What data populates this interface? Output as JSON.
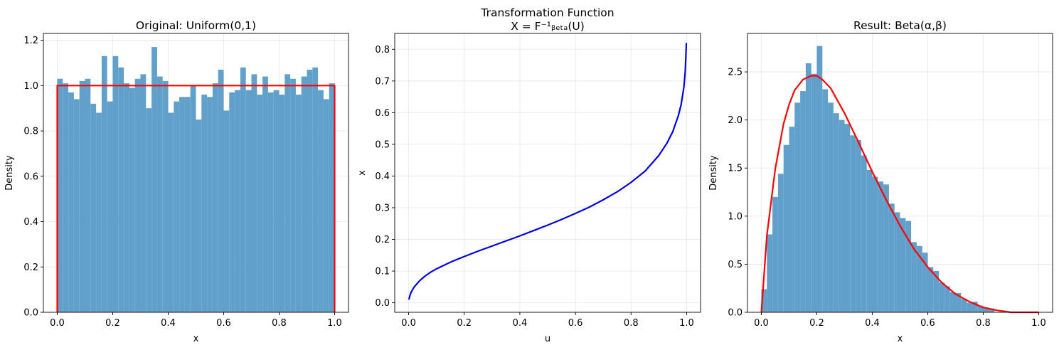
{
  "chart_data": [
    {
      "type": "bar",
      "title": "Original: Uniform(0,1)",
      "xlabel": "x",
      "ylabel": "Density",
      "xlim": [
        -0.05,
        1.05
      ],
      "ylim": [
        0,
        1.23
      ],
      "xticks": [
        "0.0",
        "0.2",
        "0.4",
        "0.6",
        "0.8",
        "1.0"
      ],
      "yticks": [
        "0.0",
        "0.2",
        "0.4",
        "0.6",
        "0.8",
        "1.0",
        "1.2"
      ],
      "grid": true,
      "histogram": {
        "bin_start": 0.0,
        "bin_end": 1.0,
        "values": [
          1.03,
          1.01,
          0.97,
          0.94,
          1.02,
          1.03,
          0.92,
          0.88,
          1.13,
          0.93,
          1.13,
          1.08,
          1.01,
          0.99,
          1.03,
          1.05,
          0.9,
          1.17,
          1.04,
          1.02,
          0.88,
          0.93,
          0.95,
          0.95,
          1.0,
          0.85,
          0.96,
          0.95,
          1.01,
          1.07,
          0.89,
          0.97,
          0.98,
          1.08,
          0.98,
          1.05,
          0.96,
          1.04,
          0.97,
          0.98,
          0.96,
          1.05,
          1.03,
          0.96,
          1.04,
          1.07,
          1.08,
          0.98,
          0.94,
          1.01
        ],
        "color": "#5f9ecb"
      },
      "curve": {
        "name": "",
        "x": [
          0.0,
          0.0,
          1.0,
          1.0
        ],
        "y": [
          0.0,
          1.0,
          1.0,
          0.0
        ],
        "color": "#ff0000"
      }
    },
    {
      "type": "line",
      "title": "Transformation Function\nX = F⁻¹ᵦₑₜₐ(U)",
      "xlabel": "u",
      "ylabel": "x",
      "xlim": [
        -0.05,
        1.05
      ],
      "ylim": [
        -0.03,
        0.85
      ],
      "xticks": [
        "0.0",
        "0.2",
        "0.4",
        "0.6",
        "0.8",
        "1.0"
      ],
      "yticks": [
        "0.0",
        "0.1",
        "0.2",
        "0.3",
        "0.4",
        "0.5",
        "0.6",
        "0.7",
        "0.8"
      ],
      "grid": true,
      "series": [
        {
          "x": [
            0.001,
            0.005,
            0.01,
            0.02,
            0.04,
            0.06,
            0.08,
            0.1,
            0.15,
            0.2,
            0.25,
            0.3,
            0.35,
            0.4,
            0.45,
            0.5,
            0.55,
            0.6,
            0.65,
            0.7,
            0.75,
            0.8,
            0.85,
            0.9,
            0.93,
            0.95,
            0.97,
            0.98,
            0.99,
            0.995,
            0.999
          ],
          "y": [
            0.01,
            0.024,
            0.035,
            0.05,
            0.07,
            0.085,
            0.097,
            0.107,
            0.128,
            0.146,
            0.163,
            0.179,
            0.195,
            0.211,
            0.228,
            0.245,
            0.263,
            0.282,
            0.302,
            0.325,
            0.35,
            0.38,
            0.415,
            0.465,
            0.505,
            0.54,
            0.59,
            0.625,
            0.68,
            0.73,
            0.82
          ],
          "color": "#0000ee"
        }
      ]
    },
    {
      "type": "bar",
      "title": "Result: Beta(α,β)",
      "xlabel": "x",
      "ylabel": "Density",
      "xlim": [
        -0.05,
        1.05
      ],
      "ylim": [
        0,
        2.9
      ],
      "xticks": [
        "0.0",
        "0.2",
        "0.4",
        "0.6",
        "0.8",
        "1.0"
      ],
      "yticks": [
        "0.0",
        "0.5",
        "1.0",
        "1.5",
        "2.0",
        "2.5"
      ],
      "grid": true,
      "histogram": {
        "bin_start": 0.0,
        "bin_end": 0.84,
        "values": [
          0.24,
          0.81,
          1.2,
          1.44,
          1.74,
          1.93,
          2.18,
          2.3,
          2.59,
          2.48,
          2.77,
          2.32,
          2.18,
          2.07,
          2.0,
          1.96,
          1.84,
          1.79,
          1.63,
          1.48,
          1.41,
          1.36,
          1.33,
          1.13,
          1.04,
          0.98,
          0.95,
          0.73,
          0.69,
          0.62,
          0.47,
          0.43,
          0.31,
          0.27,
          0.21,
          0.2,
          0.14,
          0.1,
          0.11,
          0.07,
          0.05,
          0.04
        ],
        "color": "#5f9ecb"
      },
      "curve": {
        "name": "",
        "x": [
          0.0,
          0.02,
          0.05,
          0.08,
          0.1,
          0.12,
          0.15,
          0.18,
          0.2,
          0.22,
          0.25,
          0.3,
          0.35,
          0.4,
          0.45,
          0.5,
          0.55,
          0.6,
          0.65,
          0.7,
          0.75,
          0.8,
          0.85,
          0.9,
          0.95,
          1.0
        ],
        "y": [
          0.0,
          0.8,
          1.49,
          1.96,
          2.16,
          2.31,
          2.42,
          2.46,
          2.46,
          2.42,
          2.33,
          2.07,
          1.77,
          1.46,
          1.17,
          0.9,
          0.66,
          0.47,
          0.31,
          0.19,
          0.11,
          0.05,
          0.02,
          0.0,
          0.0,
          0.0
        ],
        "color": "#ff0000"
      }
    }
  ]
}
